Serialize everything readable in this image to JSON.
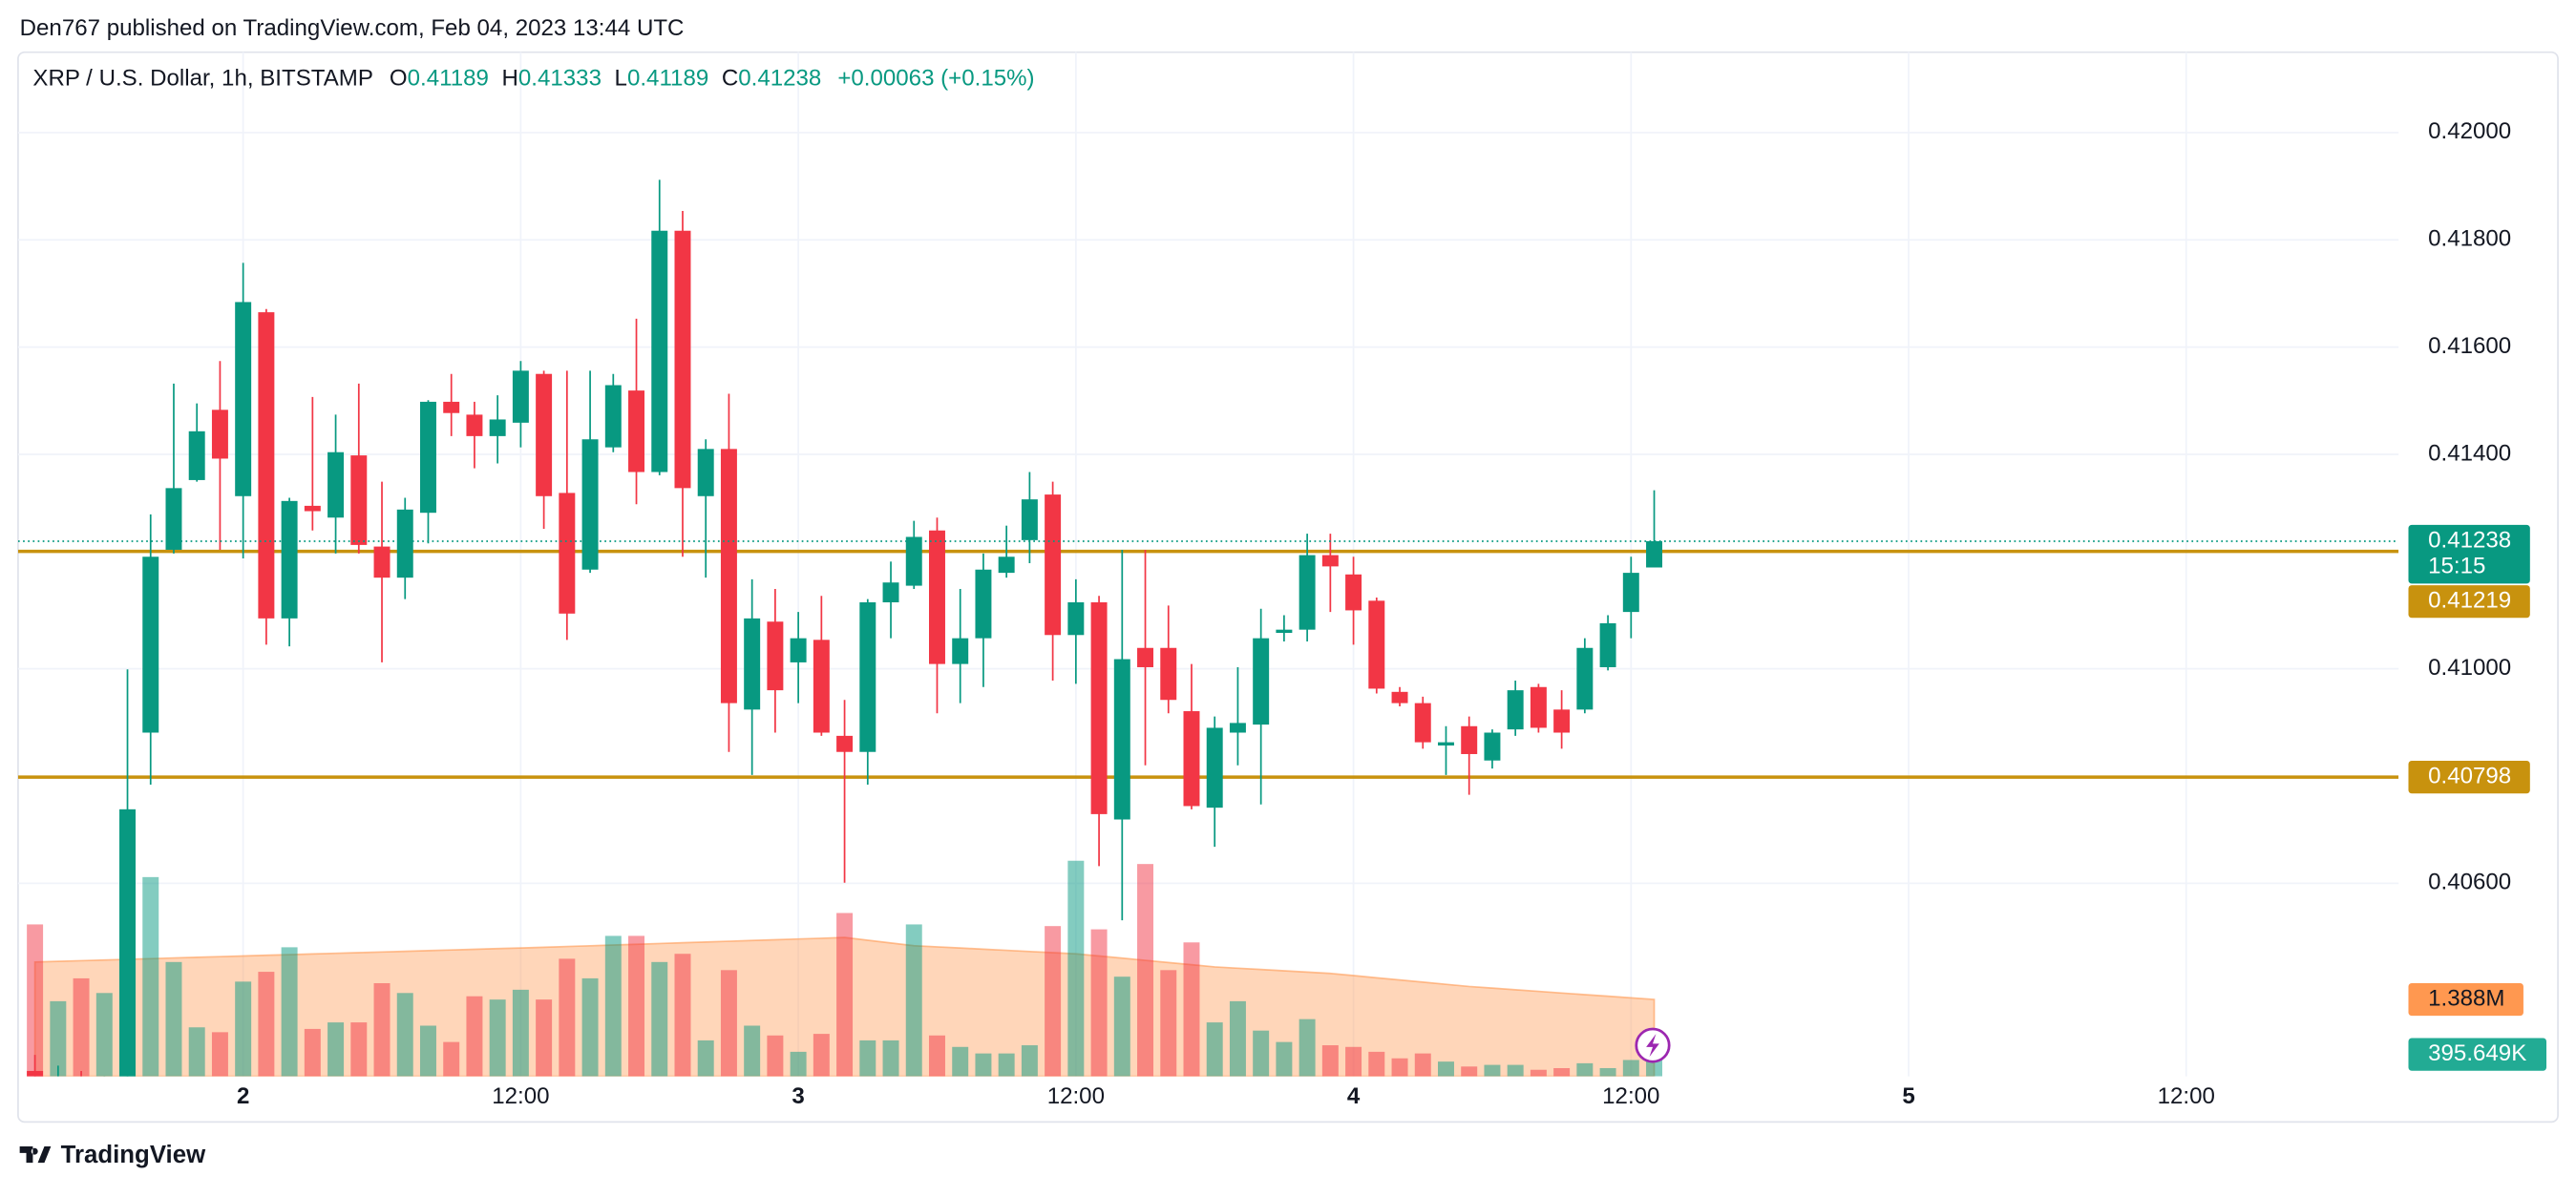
{
  "branding": {
    "publisher": "Den767 published on TradingView.com, Feb 04, 2023 13:44 UTC",
    "logo": "TradingView"
  },
  "chart_data": {
    "type": "candlestick",
    "symbol": "XRP / U.S. Dollar, 1h, BITSTAMP",
    "legend_keys": [
      "O",
      "H",
      "L",
      "C"
    ],
    "change": "+0.00063 (+0.15%)",
    "countdown": "15:15",
    "colors": {
      "up": "#089981",
      "down": "#f23645",
      "volume_up": "rgba(8,153,129,0.5)",
      "volume_down": "rgba(242,54,69,0.5)",
      "volume_ma": "#ff9850",
      "level": "#c8920e"
    },
    "x": [
      15,
      16,
      17,
      18,
      19,
      20,
      21,
      22,
      23,
      24,
      25,
      26,
      27,
      28,
      29,
      30,
      31,
      32,
      33,
      34,
      35,
      36,
      37,
      38,
      39,
      40,
      41,
      42,
      43,
      44,
      45,
      46,
      47,
      48,
      49,
      50,
      51,
      52,
      53,
      54,
      55,
      56,
      57,
      58,
      59,
      60,
      61,
      62,
      63,
      64,
      65,
      66,
      67,
      68,
      69,
      70,
      71,
      72,
      73,
      74,
      75,
      76,
      77,
      78,
      79,
      80,
      81,
      82,
      83,
      84,
      85
    ],
    "open": [
      0.4025,
      0.4021,
      0.4023,
      0.402,
      0.4021,
      0.40881,
      0.41222,
      0.41352,
      0.41483,
      0.41322,
      0.41665,
      0.41094,
      0.41304,
      0.41282,
      0.41398,
      0.41228,
      0.4117,
      0.41291,
      0.41498,
      0.41474,
      0.41434,
      0.41459,
      0.4155,
      0.41328,
      0.41185,
      0.41413,
      0.41519,
      0.41367,
      0.41817,
      0.41322,
      0.4141,
      0.40924,
      0.41088,
      0.41012,
      0.41054,
      0.40875,
      0.40845,
      0.41124,
      0.41155,
      0.41258,
      0.41009,
      0.41057,
      0.41179,
      0.4124,
      0.41325,
      0.41063,
      0.41124,
      0.40719,
      0.41039,
      0.41039,
      0.40921,
      0.40741,
      0.40881,
      0.40896,
      0.41067,
      0.41073,
      0.41212,
      0.41176,
      0.41127,
      0.40957,
      0.40936,
      0.40857,
      0.40893,
      0.40829,
      0.40887,
      0.40966,
      0.40924,
      0.40924,
      0.41003,
      0.41106,
      0.41189
    ],
    "high": [
      0.4028,
      0.4026,
      0.4025,
      0.4024,
      0.40999,
      0.41288,
      0.41532,
      0.41495,
      0.41574,
      0.41757,
      0.41671,
      0.41319,
      0.41507,
      0.41474,
      0.41532,
      0.41349,
      0.41319,
      0.41501,
      0.4155,
      0.41498,
      0.4151,
      0.41574,
      0.41556,
      0.41556,
      0.41556,
      0.4155,
      0.41653,
      0.41912,
      0.41854,
      0.41428,
      0.41513,
      0.41167,
      0.41149,
      0.41106,
      0.41136,
      0.40942,
      0.4113,
      0.412,
      0.41276,
      0.41282,
      0.41149,
      0.41215,
      0.41267,
      0.41367,
      0.41349,
      0.41167,
      0.41136,
      0.41222,
      0.41222,
      0.41118,
      0.41009,
      0.40911,
      0.41003,
      0.41112,
      0.411,
      0.41252,
      0.41252,
      0.41209,
      0.41133,
      0.40966,
      0.40948,
      0.40893,
      0.40911,
      0.40887,
      0.40978,
      0.40972,
      0.4096,
      0.41057,
      0.411,
      0.41209,
      0.41333
    ],
    "low": [
      0.4018,
      0.4019,
      0.4017,
      0.4018,
      0.4019,
      0.40784,
      0.41215,
      0.41349,
      0.41222,
      0.41206,
      0.41045,
      0.41042,
      0.41258,
      0.41215,
      0.41215,
      0.41012,
      0.4113,
      0.41234,
      0.41434,
      0.41374,
      0.41383,
      0.41413,
      0.41261,
      0.41054,
      0.41179,
      0.41404,
      0.41307,
      0.41361,
      0.41209,
      0.4117,
      0.40845,
      0.40802,
      0.40881,
      0.40936,
      0.40875,
      0.40601,
      0.40784,
      0.41057,
      0.41149,
      0.40917,
      0.40936,
      0.40966,
      0.4117,
      0.41197,
      0.40978,
      0.40972,
      0.40632,
      0.40531,
      0.4082,
      0.40917,
      0.40738,
      0.40668,
      0.4082,
      0.40747,
      0.41051,
      0.41051,
      0.41106,
      0.41045,
      0.40954,
      0.4093,
      0.40851,
      0.40802,
      0.40765,
      0.40814,
      0.40875,
      0.40881,
      0.40851,
      0.40917,
      0.40997,
      0.41057,
      0.41189
    ],
    "close": [
      0.4021,
      0.4023,
      0.402,
      0.4021,
      0.40738,
      0.41209,
      0.41337,
      0.41443,
      0.41392,
      0.41684,
      0.41094,
      0.41313,
      0.41294,
      0.41404,
      0.41231,
      0.4117,
      0.41297,
      0.41498,
      0.41477,
      0.41434,
      0.41465,
      0.41556,
      0.41322,
      0.41103,
      0.41428,
      0.41529,
      0.41367,
      0.41817,
      0.41337,
      0.4141,
      0.40936,
      0.41094,
      0.4096,
      0.41057,
      0.40881,
      0.40845,
      0.41124,
      0.41161,
      0.41246,
      0.41009,
      0.41057,
      0.41185,
      0.41209,
      0.41316,
      0.41063,
      0.41124,
      0.40729,
      0.41018,
      0.41003,
      0.40942,
      0.40744,
      0.4089,
      0.40899,
      0.41057,
      0.41073,
      0.41212,
      0.41191,
      0.41109,
      0.40963,
      0.40936,
      0.40863,
      0.40863,
      0.40841,
      0.40881,
      0.4096,
      0.4089,
      0.40881,
      0.41039,
      0.41085,
      0.41179,
      0.41238
    ],
    "xlim": [
      14.27,
      117.18
    ],
    "xticks": [
      {
        "value": 24,
        "label": "2"
      },
      {
        "value": 36,
        "label": "12:00"
      },
      {
        "value": 48,
        "label": "3"
      },
      {
        "value": 60,
        "label": "12:00"
      },
      {
        "value": 72,
        "label": "4"
      },
      {
        "value": 84,
        "label": "12:00"
      },
      {
        "value": 96,
        "label": "5"
      },
      {
        "value": 108,
        "label": "12:00"
      }
    ],
    "ylim": [
      0.4024,
      0.4215
    ],
    "yticks": [
      {
        "value": 0.406,
        "label": "0.40600"
      },
      {
        "value": 0.41,
        "label": "0.41000"
      },
      {
        "value": 0.414,
        "label": "0.41400"
      },
      {
        "value": 0.416,
        "label": "0.41600"
      },
      {
        "value": 0.418,
        "label": "0.41800"
      },
      {
        "value": 0.42,
        "label": "0.42000"
      }
    ],
    "grid": true,
    "levels": [
      0.41219,
      0.40798
    ],
    "y2lim": [
      0,
      18500000
    ],
    "volume": {
      "axis": "y2",
      "values": [
        2744000,
        1357000,
        1770000,
        1505000,
        4661000,
        3599000,
        2065000,
        885000,
        797000,
        1711000,
        1888000,
        2331000,
        856000,
        974000,
        974000,
        1682000,
        1505000,
        915000,
        620000,
        1446000,
        1387000,
        1564000,
        1387000,
        2124000,
        1770000,
        2537000,
        2537000,
        2065000,
        2213000,
        649000,
        1918000,
        915000,
        738000,
        443000,
        767000,
        2950000,
        649000,
        649000,
        2744000,
        738000,
        531000,
        413000,
        413000,
        561000,
        2714000,
        3894000,
        2655000,
        1800000,
        3835000,
        1918000,
        2419000,
        974000,
        1357000,
        826000,
        620000,
        1033000,
        561000,
        531000,
        443000,
        325000,
        413000,
        266000,
        177000,
        207000,
        207000,
        118000,
        148000,
        236000,
        148000,
        295000,
        395649
      ],
      "value_labels": [
        null,
        null,
        null,
        null,
        null,
        null,
        null,
        null,
        null,
        null,
        null,
        null,
        null,
        null,
        null,
        null,
        null,
        null,
        null,
        null,
        null,
        null,
        null,
        null,
        null,
        null,
        null,
        null,
        null,
        null,
        null,
        null,
        null,
        null,
        null,
        null,
        null,
        null,
        null,
        null,
        null,
        null,
        null,
        null,
        null,
        null,
        null,
        null,
        null,
        null,
        null,
        null,
        null,
        null,
        null,
        null,
        null,
        null,
        null,
        null,
        null,
        null,
        null,
        null,
        null,
        null,
        null,
        null,
        null,
        null,
        "395.649K"
      ],
      "ma": {
        "values": [
          2065000,
          2077000,
          2089000,
          2101000,
          2113000,
          2125000,
          2138000,
          2150000,
          2162000,
          2174000,
          2186000,
          2198000,
          2210000,
          2222000,
          2234000,
          2246000,
          2258000,
          2271000,
          2283000,
          2295000,
          2307000,
          2319000,
          2331000,
          2345000,
          2358000,
          2372000,
          2385000,
          2399000,
          2413000,
          2426000,
          2440000,
          2454000,
          2467000,
          2481000,
          2494000,
          2508000,
          2459000,
          2409000,
          2360000,
          2339000,
          2318000,
          2297000,
          2276000,
          2255000,
          2234000,
          2213000,
          2174000,
          2135000,
          2095000,
          2056000,
          2016000,
          1977000,
          1953000,
          1930000,
          1906000,
          1883000,
          1859000,
          1820000,
          1780000,
          1741000,
          1702000,
          1662000,
          1623000,
          1594000,
          1564000,
          1535000,
          1505000,
          1476000,
          1447000,
          1417000,
          1388000
        ],
        "value_labels": [
          null,
          null,
          null,
          null,
          null,
          null,
          null,
          null,
          null,
          null,
          null,
          null,
          null,
          null,
          null,
          null,
          null,
          null,
          null,
          null,
          null,
          null,
          null,
          null,
          null,
          null,
          null,
          null,
          null,
          null,
          null,
          null,
          null,
          null,
          null,
          null,
          null,
          null,
          null,
          null,
          null,
          null,
          null,
          null,
          null,
          null,
          null,
          null,
          null,
          null,
          null,
          null,
          null,
          null,
          null,
          null,
          null,
          null,
          null,
          null,
          null,
          null,
          null,
          null,
          null,
          null,
          null,
          null,
          null,
          null,
          "1.388M"
        ]
      }
    }
  }
}
